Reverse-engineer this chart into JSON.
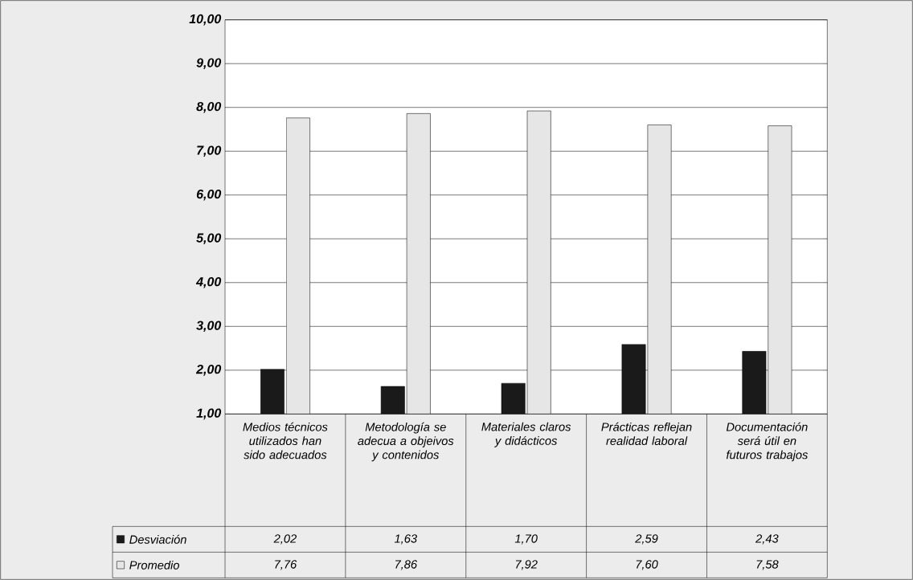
{
  "chart_data": {
    "type": "bar",
    "categories": [
      "Medios técnicos utilizados han sido adecuados",
      "Metodología se adecua a objeivos y contenidos",
      "Materiales claros y didácticos",
      "Prácticas reflejan realidad laboral",
      "Documentación será útil en futuros trabajos"
    ],
    "series": [
      {
        "name": "Desviación",
        "color": "#1a1a1a",
        "values": [
          2.02,
          1.63,
          1.7,
          2.59,
          2.43
        ],
        "value_labels": [
          "2,02",
          "1,63",
          "1,70",
          "2,59",
          "2,43"
        ]
      },
      {
        "name": "Promedio",
        "color": "#e6e6e6",
        "values": [
          7.76,
          7.86,
          7.92,
          7.6,
          7.58
        ],
        "value_labels": [
          "7,76",
          "7,86",
          "7,92",
          "7,60",
          "7,58"
        ]
      }
    ],
    "ylim": [
      1,
      10
    ],
    "yticks": [
      {
        "value": 1,
        "label": "1,00"
      },
      {
        "value": 2,
        "label": "2,00"
      },
      {
        "value": 3,
        "label": "3,00"
      },
      {
        "value": 4,
        "label": "4,00"
      },
      {
        "value": 5,
        "label": "5,00"
      },
      {
        "value": 6,
        "label": "6,00"
      },
      {
        "value": 7,
        "label": "7,00"
      },
      {
        "value": 8,
        "label": "8,00"
      },
      {
        "value": 9,
        "label": "9,00"
      },
      {
        "value": 10,
        "label": "10,00"
      }
    ],
    "grid": "y",
    "legend": "bottom"
  }
}
